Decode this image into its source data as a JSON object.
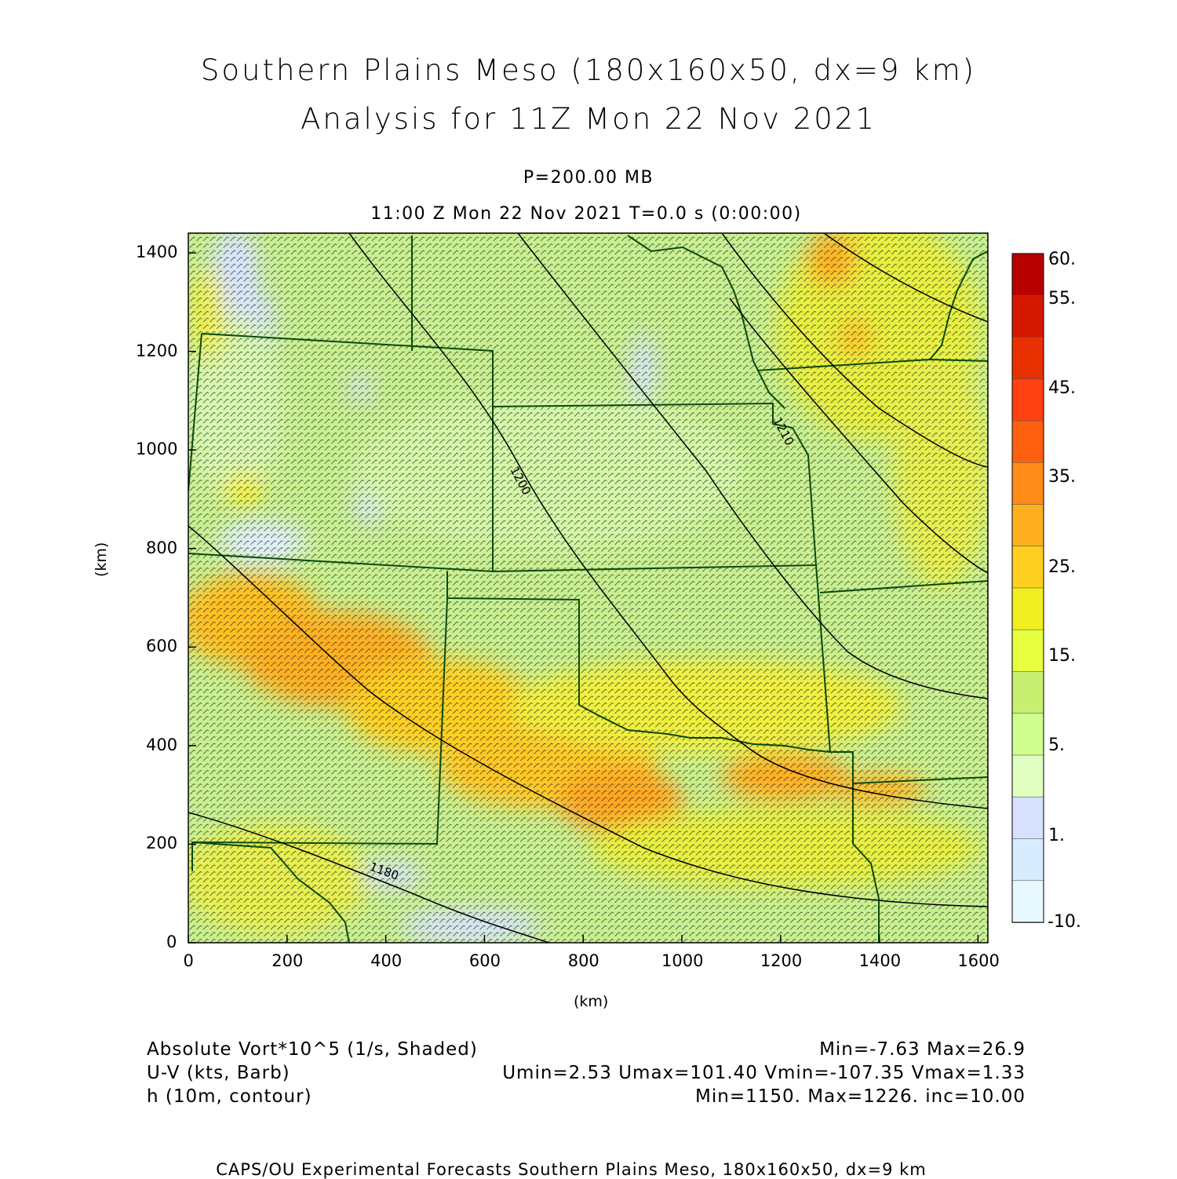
{
  "titles": {
    "line1": "Southern Plains Meso (180x160x50, dx=9 km)",
    "line2": "Analysis for 11Z Mon 22 Nov 2021",
    "level": "P=200.00 MB",
    "time": "11:00 Z Mon 22 Nov 2021    T=0.0 s (0:00:00)"
  },
  "axes": {
    "x_ticks": [
      "0",
      "200",
      "400",
      "600",
      "800",
      "1000",
      "1200",
      "1400",
      "1600"
    ],
    "y_ticks": [
      "0",
      "200",
      "400",
      "600",
      "800",
      "1000",
      "1200",
      "1400"
    ],
    "x_label": "(km)",
    "y_label": "(km)"
  },
  "colorbar": {
    "labels": [
      "60.",
      "55.",
      "45.",
      "35.",
      "25.",
      "15.",
      "5.",
      "1.",
      "-10."
    ],
    "colors": [
      "#b80000",
      "#d41800",
      "#e83000",
      "#ff4010",
      "#ff6010",
      "#ff8c18",
      "#ffb020",
      "#ffd020",
      "#f0f020",
      "#e8ff40",
      "#c8f070",
      "#d0ff90",
      "#e0ffc0",
      "#d8e0ff",
      "#d8ecff",
      "#e8f8ff"
    ]
  },
  "legend": {
    "left": [
      "Absolute Vort*10^5 (1/s, Shaded)",
      "U-V (kts, Barb)",
      "h (10m, contour)"
    ],
    "right": [
      "Min=-7.63 Max=26.9",
      "Umin=2.53 Umax=101.40 Vmin=-107.35 Vmax=1.33",
      "Min=1150. Max=1226. inc=10.00"
    ]
  },
  "contour_labels": [
    "1200",
    "1210",
    "1180"
  ],
  "footer": "CAPS/OU Experimental Forecasts  Southern Plains Meso, 180x160x50, dx=9 km"
}
